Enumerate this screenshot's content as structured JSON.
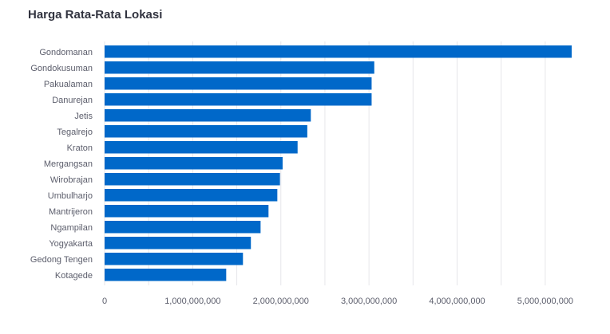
{
  "chart_data": {
    "type": "bar",
    "orientation": "horizontal",
    "title": "Harga Rata-Rata Lokasi",
    "categories": [
      "Gondomanan",
      "Gondokusuman",
      "Pakualaman",
      "Danurejan",
      "Jetis",
      "Tegalrejo",
      "Kraton",
      "Mergangsan",
      "Wirobrajan",
      "Umbulharjo",
      "Mantrijeron",
      "Ngampilan",
      "Yogyakarta",
      "Gedong Tengen",
      "Kotagede"
    ],
    "values": [
      5300000000,
      3060000000,
      3030000000,
      3030000000,
      2340000000,
      2300000000,
      2190000000,
      2020000000,
      1990000000,
      1960000000,
      1860000000,
      1770000000,
      1660000000,
      1570000000,
      1380000000
    ],
    "xlim": [
      0,
      5300000000
    ],
    "xticks": [
      0,
      1000000000,
      2000000000,
      3000000000,
      4000000000,
      5000000000
    ],
    "xtick_labels": [
      "0",
      "1,000,000,000",
      "2,000,000,000",
      "3,000,000,000",
      "4,000,000,000",
      "5,000,000,000"
    ],
    "xlabel": "",
    "ylabel": "",
    "grid": true,
    "bar_color": "#0068c9",
    "grid_color": "#e6e6ea"
  }
}
